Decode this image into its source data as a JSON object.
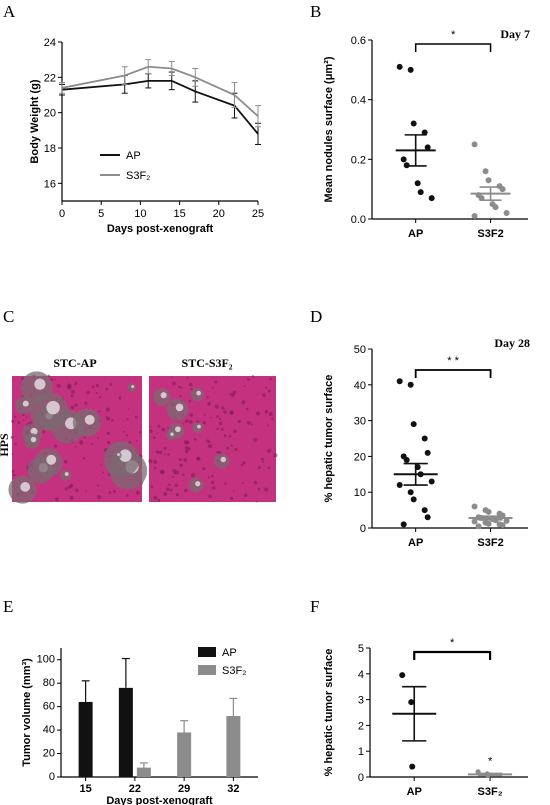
{
  "panel_letters": {
    "a": "A",
    "b": "B",
    "c": "C",
    "d": "D",
    "e": "E",
    "f": "F"
  },
  "colors": {
    "ap": "#111111",
    "s3f2": "#8c8c8c",
    "tissue": "#c4327f"
  },
  "chart_data": [
    {
      "id": "A",
      "type": "line",
      "xlabel": "Days post-xenograft",
      "ylabel": "Body Weight (g)",
      "xlim": [
        0,
        25
      ],
      "ylim": [
        15,
        24
      ],
      "xticks": [
        0,
        5,
        10,
        15,
        20,
        25
      ],
      "yticks": [
        16,
        18,
        20,
        22,
        24
      ],
      "series": [
        {
          "name": "AP",
          "x": [
            0,
            8,
            11,
            14,
            17,
            22,
            25
          ],
          "y": [
            21.3,
            21.6,
            21.8,
            21.8,
            21.2,
            20.4,
            18.8
          ],
          "err": [
            0.3,
            0.5,
            0.4,
            0.5,
            0.6,
            0.7,
            0.6
          ]
        },
        {
          "name": "S3F₂",
          "x": [
            0,
            8,
            11,
            14,
            17,
            22,
            25
          ],
          "y": [
            21.4,
            22.1,
            22.6,
            22.5,
            22.0,
            21.0,
            19.8
          ],
          "err": [
            0.3,
            0.5,
            0.4,
            0.4,
            0.5,
            0.7,
            0.6
          ]
        }
      ],
      "legend": "middle-left"
    },
    {
      "id": "B",
      "type": "scatter",
      "annotation": "Day 7",
      "ylabel": "Mean nodules surface (μm²)",
      "categories": [
        "AP",
        "S3F2"
      ],
      "ylim": [
        0,
        0.6
      ],
      "yticks": [
        0.0,
        0.2,
        0.4,
        0.6
      ],
      "ytick_labels": [
        "0.0",
        "0.2",
        "0.4",
        "0.6"
      ],
      "significance": "*",
      "series": [
        {
          "name": "AP",
          "points": [
            0.51,
            0.5,
            0.32,
            0.29,
            0.24,
            0.2,
            0.18,
            0.12,
            0.09,
            0.07
          ],
          "mean": 0.23,
          "sem": 0.052
        },
        {
          "name": "S3F2",
          "points": [
            0.25,
            0.16,
            0.13,
            0.11,
            0.1,
            0.08,
            0.07,
            0.05,
            0.04,
            0.02,
            0.01
          ],
          "mean": 0.085,
          "sem": 0.022
        }
      ]
    },
    {
      "id": "D",
      "type": "scatter",
      "annotation": "Day 28",
      "ylabel": "% hepatic tumor surface",
      "categories": [
        "AP",
        "S3F2"
      ],
      "ylim": [
        0,
        50
      ],
      "yticks": [
        0,
        10,
        20,
        30,
        40,
        50
      ],
      "ytick_labels": [
        "0",
        "10",
        "20",
        "30",
        "40",
        "50"
      ],
      "significance": "* *",
      "series": [
        {
          "name": "AP",
          "points": [
            41,
            40,
            29,
            25,
            21,
            20,
            19,
            17,
            15,
            13,
            12,
            10,
            8,
            5,
            3,
            1
          ],
          "mean": 15,
          "sem": 3
        },
        {
          "name": "S3F2",
          "points": [
            6,
            5,
            4.5,
            4,
            3.5,
            3,
            2.8,
            2.5,
            2.2,
            2,
            1.8,
            1.5,
            1.2,
            1,
            0.8,
            0.5
          ],
          "mean": 2.8,
          "sem": 0.5
        }
      ]
    },
    {
      "id": "E",
      "type": "bar",
      "xlabel": "Days post-xenograft",
      "ylabel": "Tumor volume (mm³)",
      "categories": [
        "15",
        "22",
        "29",
        "32"
      ],
      "ylim": [
        0,
        110
      ],
      "yticks": [
        0,
        20,
        40,
        60,
        80,
        100
      ],
      "series": [
        {
          "name": "AP",
          "values": [
            64,
            76,
            null,
            null
          ],
          "err": [
            18,
            25,
            null,
            null
          ]
        },
        {
          "name": "S3F₂",
          "values": [
            null,
            8,
            38,
            52
          ],
          "err": [
            null,
            4,
            10,
            15
          ]
        }
      ],
      "legend": "top-right"
    },
    {
      "id": "F",
      "type": "scatter",
      "ylabel": "% hepatic tumor surface",
      "categories": [
        "AP",
        "S3F₂"
      ],
      "ylim": [
        0,
        5
      ],
      "yticks": [
        0,
        1,
        2,
        3,
        4,
        5
      ],
      "significance": "*",
      "point_marker": "*",
      "series": [
        {
          "name": "AP",
          "points": [
            3.95,
            2.9,
            0.4
          ],
          "mean": 2.45,
          "sem": 1.05
        },
        {
          "name": "S3F₂",
          "points": [
            0.2,
            0.12,
            0.06
          ],
          "mean": 0.1,
          "sem": 0.04
        }
      ]
    }
  ],
  "histology": {
    "row_label": "HPS",
    "left_title": "STC-AP",
    "right_title": "STC-S3F₂"
  }
}
